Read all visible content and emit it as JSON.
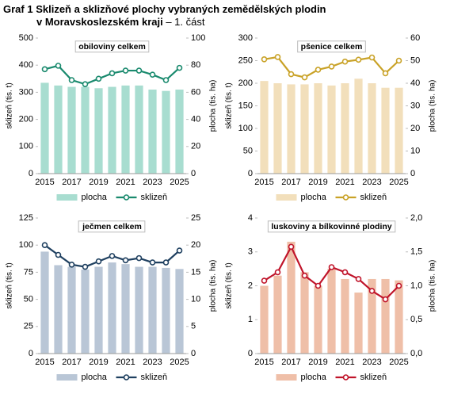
{
  "title": {
    "label": "Graf 1",
    "lines": [
      "Sklizeň a sklizňové plochy vybraných  zemědělských plodin",
      "v Moravskoslezském  kraji"
    ],
    "part": "– 1. část"
  },
  "chart_data": [
    {
      "type": "combo",
      "title": "obiloviny celkem",
      "ylabel": "sklizeň (tis. t)",
      "y2label": "plocha (tis. ha)",
      "categories": [
        "2015",
        null,
        "2017",
        null,
        "2019",
        null,
        "2021",
        null,
        "2023",
        null,
        "2025"
      ],
      "ylim": [
        0,
        500
      ],
      "yticks": [
        0,
        100,
        200,
        300,
        400,
        500
      ],
      "y2lim": [
        0,
        100
      ],
      "y2ticks": [
        0,
        20,
        40,
        60,
        80,
        100
      ],
      "series": [
        {
          "name": "plocha",
          "type": "bar",
          "axis": "y2",
          "color": "#a8ddd0",
          "values": [
            67,
            65,
            64,
            64,
            63,
            64,
            65,
            65,
            62,
            61,
            62
          ]
        },
        {
          "name": "sklizeň",
          "type": "line",
          "color": "#1a8a6e",
          "values": [
            385,
            398,
            345,
            330,
            350,
            370,
            380,
            380,
            365,
            345,
            390
          ]
        }
      ]
    },
    {
      "type": "combo",
      "title": "pšenice celkem",
      "ylabel": "sklizeň (tis. t)",
      "y2label": "plocha (tis. ha)",
      "categories": [
        "2015",
        null,
        "2017",
        null,
        "2019",
        null,
        "2021",
        null,
        "2023",
        null,
        "2025"
      ],
      "ylim": [
        0,
        300
      ],
      "yticks": [
        0,
        50,
        100,
        150,
        200,
        250,
        300
      ],
      "y2lim": [
        0,
        60
      ],
      "y2ticks": [
        0,
        10,
        20,
        30,
        40,
        50,
        60
      ],
      "series": [
        {
          "name": "plocha",
          "type": "bar",
          "axis": "y2",
          "color": "#f2dfbb",
          "values": [
            41,
            40,
            39.5,
            39.5,
            40,
            39,
            40,
            42,
            40,
            38,
            38
          ]
        },
        {
          "name": "sklizeň",
          "type": "line",
          "color": "#c9a227",
          "values": [
            253,
            258,
            220,
            213,
            230,
            237,
            248,
            252,
            257,
            222,
            250
          ]
        }
      ]
    },
    {
      "type": "combo",
      "title": "ječmen celkem",
      "ylabel": "sklizeň (tis. t)",
      "y2label": "plocha (tis. ha)",
      "categories": [
        "2015",
        null,
        "2017",
        null,
        "2019",
        null,
        "2021",
        null,
        "2023",
        null,
        "2025"
      ],
      "ylim": [
        0,
        125
      ],
      "yticks": [
        0,
        25,
        50,
        75,
        100,
        125
      ],
      "y2lim": [
        0,
        25
      ],
      "y2ticks": [
        0,
        5,
        10,
        15,
        20,
        25
      ],
      "series": [
        {
          "name": "plocha",
          "type": "bar",
          "axis": "y2",
          "color": "#b9c6d6",
          "values": [
            18.8,
            16.3,
            16,
            15.5,
            16,
            16.8,
            16.5,
            16,
            16,
            15.8,
            15.6
          ]
        },
        {
          "name": "sklizeň",
          "type": "line",
          "color": "#1f4060",
          "values": [
            100,
            91,
            82,
            80,
            85,
            90,
            86,
            88,
            84,
            84,
            95
          ]
        }
      ]
    },
    {
      "type": "combo",
      "title": "luskoviny a bílkovinné plodiny",
      "ylabel": "sklizeň (tis. t)",
      "y2label": "plocha (tis. ha)",
      "categories": [
        "2015",
        null,
        "2017",
        null,
        "2019",
        null,
        "2021",
        null,
        "2023",
        null,
        "2025"
      ],
      "ylim": [
        0,
        4
      ],
      "yticks": [
        0,
        1,
        2,
        3,
        4
      ],
      "y2lim": [
        0,
        2
      ],
      "y2ticks": [
        {
          "value": 0,
          "label": "0,0"
        },
        {
          "value": 0.5,
          "label": "0,5"
        },
        {
          "value": 1,
          "label": "1,0"
        },
        {
          "value": 1.5,
          "label": "1,5"
        },
        {
          "value": 2,
          "label": "2,0"
        }
      ],
      "series": [
        {
          "name": "plocha",
          "type": "bar",
          "axis": "y2",
          "color": "#efbfa8",
          "values": [
            1.0,
            1.15,
            1.65,
            1.2,
            1.0,
            1.25,
            1.1,
            0.9,
            1.1,
            1.1,
            1.08
          ]
        },
        {
          "name": "sklizeň",
          "type": "line",
          "color": "#c0142a",
          "values": [
            2.15,
            2.4,
            3.15,
            2.3,
            2.0,
            2.55,
            2.4,
            2.2,
            1.85,
            1.6,
            2.0
          ]
        }
      ]
    }
  ]
}
